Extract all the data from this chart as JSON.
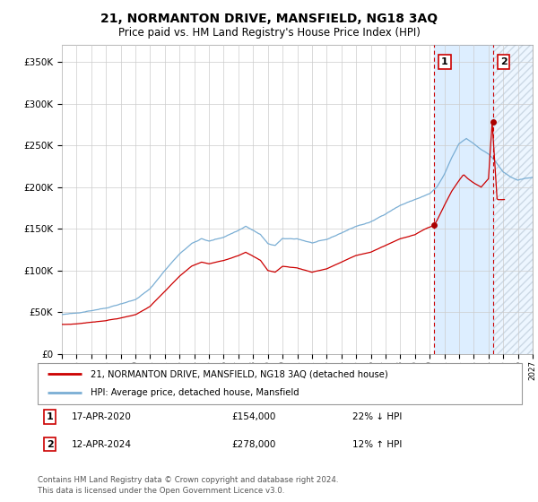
{
  "title": "21, NORMANTON DRIVE, MANSFIELD, NG18 3AQ",
  "subtitle": "Price paid vs. HM Land Registry's House Price Index (HPI)",
  "legend_line1": "21, NORMANTON DRIVE, MANSFIELD, NG18 3AQ (detached house)",
  "legend_line2": "HPI: Average price, detached house, Mansfield",
  "annotation1_label": "1",
  "annotation1_date": "17-APR-2020",
  "annotation1_price": "£154,000",
  "annotation1_hpi": "22% ↓ HPI",
  "annotation1_year": 2020.29,
  "annotation1_value": 154000,
  "annotation2_label": "2",
  "annotation2_date": "12-APR-2024",
  "annotation2_price": "£278,000",
  "annotation2_hpi": "12% ↑ HPI",
  "annotation2_year": 2024.29,
  "annotation2_value": 278000,
  "hpi_color": "#7aaed4",
  "price_color": "#cc0000",
  "vline_color": "#cc0000",
  "marker_color": "#aa0000",
  "background_color": "#ffffff",
  "shade_color": "#ddeeff",
  "ylim": [
    0,
    370000
  ],
  "xlim_start": 1995,
  "xlim_end": 2027,
  "footer": "Contains HM Land Registry data © Crown copyright and database right 2024.\nThis data is licensed under the Open Government Licence v3.0."
}
